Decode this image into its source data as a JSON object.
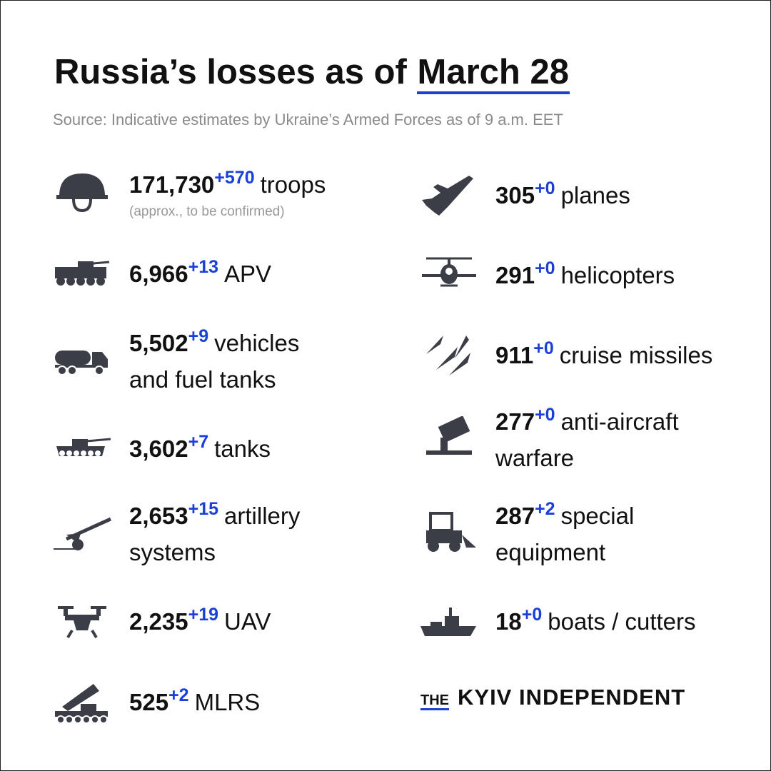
{
  "header": {
    "title": "Russia’s losses as of",
    "date": "March 28",
    "source": "Source: Indicative estimates by Ukraine’s Armed Forces as of 9 a.m. EET"
  },
  "left": [
    {
      "count": "171,730",
      "change": "+570",
      "label": [
        "troops"
      ],
      "note": "(approx., to be confirmed)"
    },
    {
      "count": "6,966",
      "change": "+13",
      "label": [
        "APV"
      ]
    },
    {
      "count": "5,502",
      "change": "+9",
      "label": [
        "vehicles",
        "and fuel tanks"
      ]
    },
    {
      "count": "3,602",
      "change": "+7",
      "label": [
        "tanks"
      ]
    },
    {
      "count": "2,653",
      "change": "+15",
      "label": [
        "artillery",
        "systems"
      ]
    },
    {
      "count": "2,235",
      "change": "+19",
      "label": [
        "UAV"
      ]
    },
    {
      "count": "525",
      "change": "+2",
      "label": [
        "MLRS"
      ]
    }
  ],
  "right": [
    {
      "count": "305",
      "change": "+0",
      "label": [
        "planes"
      ]
    },
    {
      "count": "291",
      "change": "+0",
      "label": [
        "helicopters"
      ]
    },
    {
      "count": "911",
      "change": "+0",
      "label": [
        "cruise missiles"
      ]
    },
    {
      "count": "277",
      "change": "+0",
      "label": [
        "anti-aircraft",
        "warfare"
      ]
    },
    {
      "count": "287",
      "change": "+2",
      "label": [
        "special",
        "equipment"
      ]
    },
    {
      "count": "18",
      "change": "+0",
      "label": [
        "boats / cutters"
      ]
    }
  ],
  "logo": {
    "prefix": "THE",
    "name": "KYIV INDEPENDENT"
  }
}
